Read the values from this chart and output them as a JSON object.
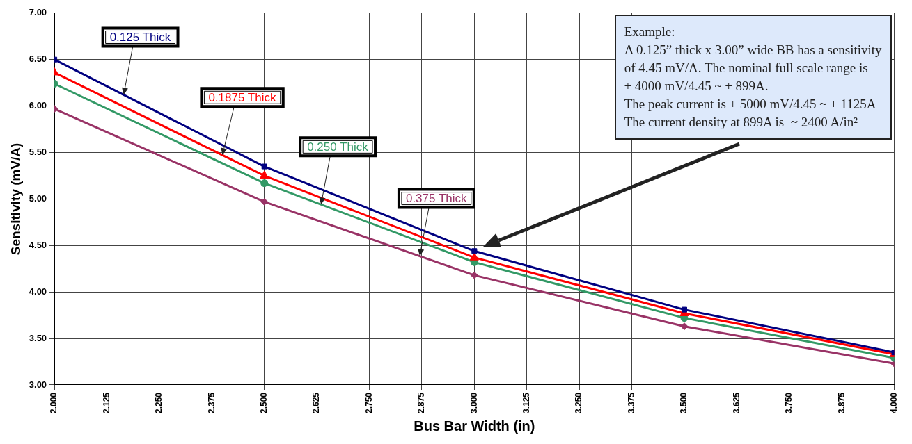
{
  "chart_data": {
    "type": "line",
    "xlabel": "Bus Bar Width (in)",
    "ylabel": "Sensitivity (mV/A)",
    "x": [
      2.0,
      2.5,
      3.0,
      3.5,
      4.0
    ],
    "series": [
      {
        "name": "0.125 Thick",
        "color": "#000080",
        "marker": "square",
        "values": [
          6.5,
          5.35,
          4.44,
          3.81,
          3.35
        ]
      },
      {
        "name": "0.1875 Thick",
        "color": "#ff0000",
        "marker": "triangle",
        "values": [
          6.36,
          5.25,
          4.37,
          3.77,
          3.33
        ]
      },
      {
        "name": "0.250 Thick",
        "color": "#339966",
        "marker": "circle",
        "values": [
          6.24,
          5.17,
          4.32,
          3.72,
          3.29
        ]
      },
      {
        "name": "0.375 Thick",
        "color": "#993366",
        "marker": "diamond",
        "values": [
          5.97,
          4.97,
          4.18,
          3.63,
          3.23
        ]
      }
    ],
    "xlim": [
      2.0,
      4.0
    ],
    "xticks": [
      {
        "value": 2.0,
        "label": "2.000"
      },
      {
        "value": 2.125,
        "label": "2.125"
      },
      {
        "value": 2.25,
        "label": "2.250"
      },
      {
        "value": 2.375,
        "label": "2.375"
      },
      {
        "value": 2.5,
        "label": "2.500"
      },
      {
        "value": 2.625,
        "label": "2.625"
      },
      {
        "value": 2.75,
        "label": "2.750"
      },
      {
        "value": 2.875,
        "label": "2.875"
      },
      {
        "value": 3.0,
        "label": "3.000"
      },
      {
        "value": 3.125,
        "label": "3.125"
      },
      {
        "value": 3.25,
        "label": "3.250"
      },
      {
        "value": 3.375,
        "label": "3.375"
      },
      {
        "value": 3.5,
        "label": "3.500"
      },
      {
        "value": 3.625,
        "label": "3.625"
      },
      {
        "value": 3.75,
        "label": "3.750"
      },
      {
        "value": 3.875,
        "label": "3.875"
      },
      {
        "value": 4.0,
        "label": "4.000"
      }
    ],
    "ylim": [
      3.0,
      7.0
    ],
    "yticks": [
      {
        "value": 3.0,
        "label": "3.00"
      },
      {
        "value": 3.5,
        "label": "3.50"
      },
      {
        "value": 4.0,
        "label": "4.00"
      },
      {
        "value": 4.5,
        "label": "4.50"
      },
      {
        "value": 5.0,
        "label": "5.00"
      },
      {
        "value": 5.5,
        "label": "5.50"
      },
      {
        "value": 6.0,
        "label": "6.00"
      },
      {
        "value": 6.5,
        "label": "6.50"
      },
      {
        "value": 7.0,
        "label": "7.00"
      }
    ],
    "grid": true,
    "legend": false,
    "line_style": "solid",
    "annotations": [
      "Example:\nA 0.125” thick x 3.00” wide BB has a sensitivity\nof 4.45 mV/A. The nominal full scale range is\n± 4000 mV/4.45 ~ ± 899A.\nThe peak current is ± 5000 mV/4.45 ~ ± 1125A\nThe current density at 899A is  ~ 2400 A/in²"
    ]
  }
}
